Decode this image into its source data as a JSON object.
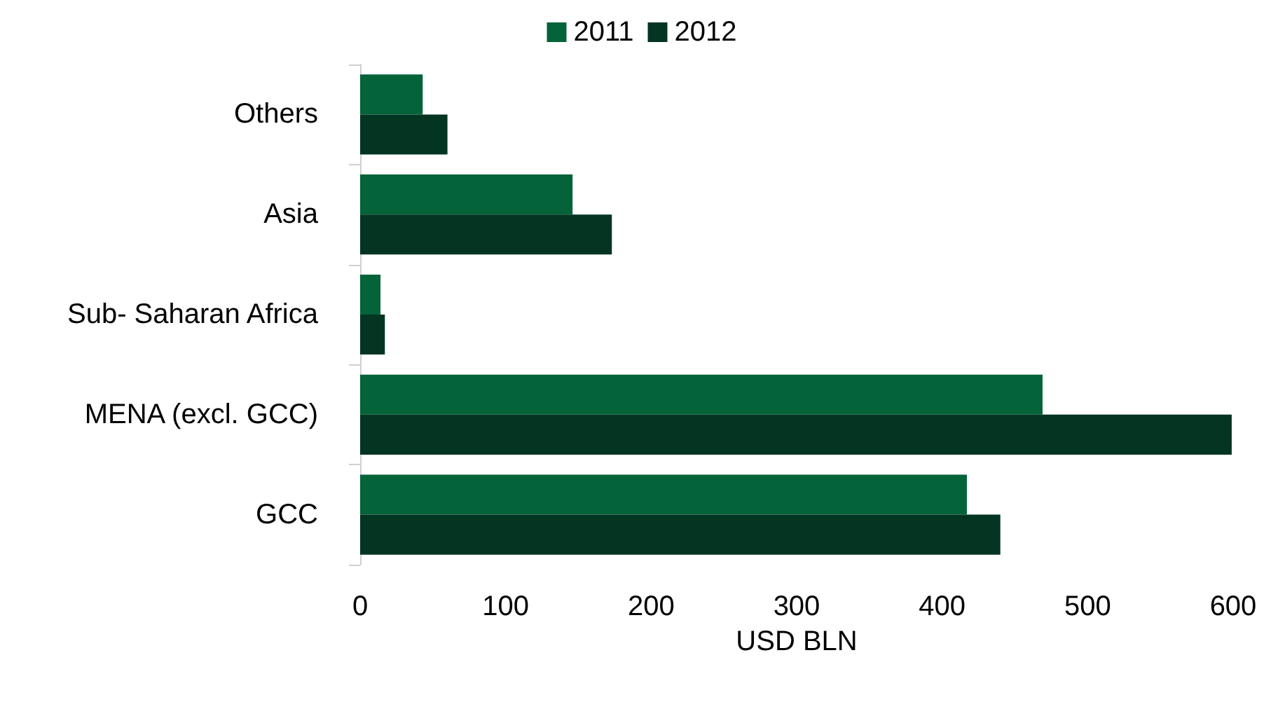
{
  "chart_data": {
    "type": "bar",
    "orientation": "horizontal",
    "xlabel": "USD BLN",
    "categories": [
      "Others",
      "Asia",
      "Sub- Saharan Africa",
      "MENA (excl. GCC)",
      "GCC"
    ],
    "series": [
      {
        "name": "2011",
        "color": "#046339",
        "values": [
          43,
          146,
          14,
          469,
          417
        ]
      },
      {
        "name": "2012",
        "color": "#033522",
        "values": [
          60,
          173,
          17,
          599,
          440
        ]
      }
    ],
    "xlim": [
      0,
      600
    ],
    "xticks": [
      0,
      100,
      200,
      300,
      400,
      500,
      600
    ],
    "grid": false,
    "legend": "top"
  }
}
